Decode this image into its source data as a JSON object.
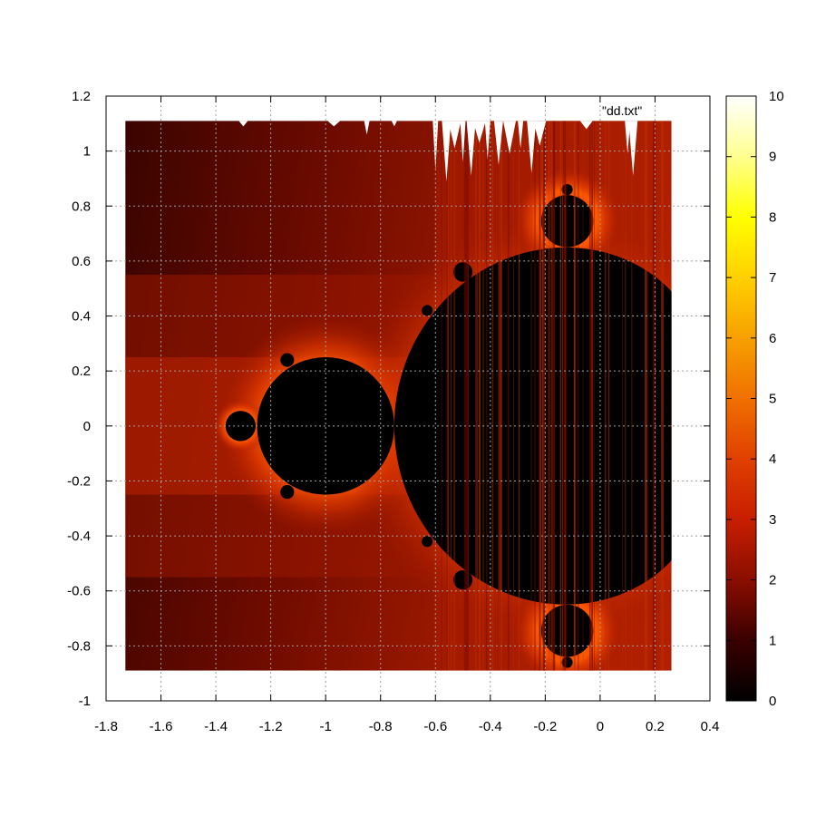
{
  "chart_data": {
    "type": "heatmap",
    "title": "",
    "xlabel": "",
    "ylabel": "",
    "xlim": [
      -1.8,
      0.4
    ],
    "ylim": [
      -1,
      1.2
    ],
    "data_extent": {
      "x": [
        -1.73,
        0.26
      ],
      "y": [
        -0.89,
        1.11
      ]
    },
    "x_ticks": [
      "-1.8",
      "-1.6",
      "-1.4",
      "-1.2",
      "-1",
      "-0.8",
      "-0.6",
      "-0.4",
      "-0.2",
      "0",
      "0.2",
      "0.4"
    ],
    "y_ticks": [
      "1.2",
      "1",
      "0.8",
      "0.6",
      "0.4",
      "0.2",
      "0",
      "-0.2",
      "-0.4",
      "-0.6",
      "-0.8",
      "-1"
    ],
    "colorbar": {
      "min": 0,
      "max": 10,
      "ticks": [
        "0",
        "1",
        "2",
        "3",
        "4",
        "5",
        "6",
        "7",
        "8",
        "9",
        "10"
      ],
      "palette": "black-red-orange-yellow-white"
    },
    "legend": {
      "label": "\"dd.txt\"",
      "placement": "top-right"
    },
    "grid": true,
    "colors": {
      "set_interior": "#000000",
      "deep_red": "#5a0800",
      "red": "#b01e00",
      "orange": "#ff6a00",
      "yellow": "#ffff00",
      "white": "#ffffff"
    }
  }
}
